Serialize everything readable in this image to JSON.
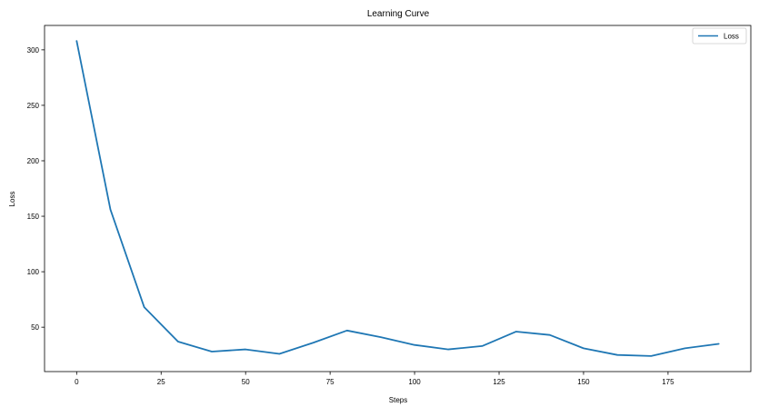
{
  "chart_data": {
    "type": "line",
    "title": "Learning Curve",
    "xlabel": "Steps",
    "ylabel": "Loss",
    "xlim": [
      -9.5,
      199.5
    ],
    "ylim": [
      10,
      322
    ],
    "x_ticks": [
      0,
      25,
      50,
      75,
      100,
      125,
      150,
      175
    ],
    "y_ticks": [
      50,
      100,
      150,
      200,
      250,
      300
    ],
    "grid": false,
    "legend_position": "top-right",
    "series": [
      {
        "name": "Loss",
        "color": "#1f77b4",
        "x": [
          0,
          10,
          20,
          30,
          40,
          50,
          60,
          70,
          80,
          90,
          100,
          110,
          120,
          130,
          140,
          150,
          160,
          170,
          180,
          190
        ],
        "y": [
          308,
          156,
          68,
          37,
          28,
          30,
          26,
          36,
          47,
          41,
          34,
          30,
          33,
          46,
          43,
          31,
          25,
          24,
          31,
          35
        ]
      }
    ]
  }
}
